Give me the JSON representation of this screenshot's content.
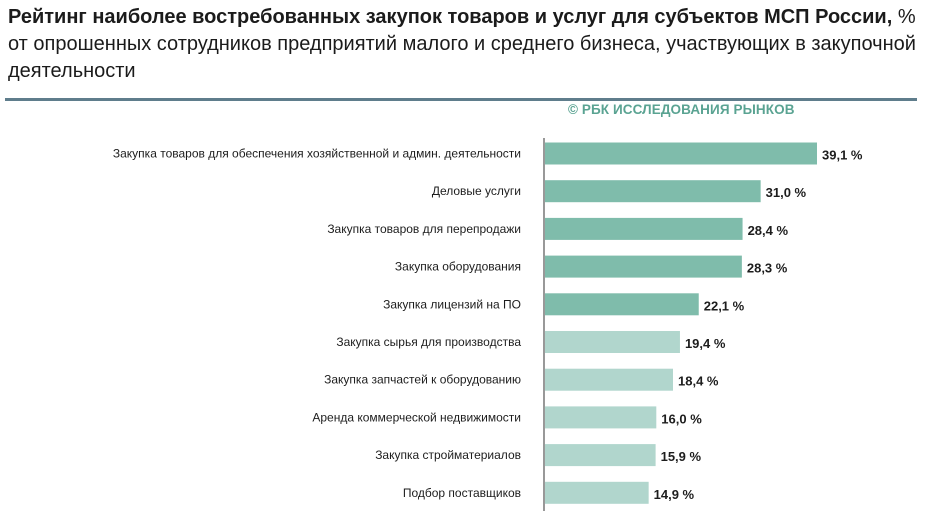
{
  "title": {
    "bold": "Рейтинг наиболее востребованных закупок товаров и услуг для субъектов МСП России,",
    "regular": " % от опрошенных сотрудников предприятий малого и среднего бизнеса, участвующих в закупочной деятельности"
  },
  "source": "© РБК ИССЛЕДОВАНИЯ РЫНКОВ",
  "colors": {
    "dark_bar": "#7fbcab",
    "light_bar": "#b1d6cd",
    "axis": "#555555",
    "rule": "#5f7d8c",
    "source": "#5aa392"
  },
  "chart_data": {
    "type": "bar",
    "orientation": "horizontal",
    "categories": [
      "Закупка товаров для обеспечения хозяйственной и админ. деятельности",
      "Деловые услуги",
      "Закупка товаров для перепродажи",
      "Закупка оборудования",
      "Закупка лицензий на ПО",
      "Закупка сырья для производства",
      "Закупка запчастей к оборудованию",
      "Аренда коммерческой недвижимости",
      "Закупка стройматериалов",
      "Подбор поставщиков"
    ],
    "values": [
      39.1,
      31.0,
      28.4,
      28.3,
      22.1,
      19.4,
      18.4,
      16.0,
      15.9,
      14.9
    ],
    "value_labels": [
      "39,1 %",
      "31,0 %",
      "28,4 %",
      "28,3 %",
      "22,1 %",
      "19,4 %",
      "18,4 %",
      "16,0 %",
      "15,9 %",
      "14,9 %"
    ],
    "bar_shade": [
      "dark",
      "dark",
      "dark",
      "dark",
      "dark",
      "light",
      "light",
      "light",
      "light",
      "light"
    ],
    "xlim": [
      0,
      40
    ],
    "grid": false,
    "legend": "none"
  }
}
